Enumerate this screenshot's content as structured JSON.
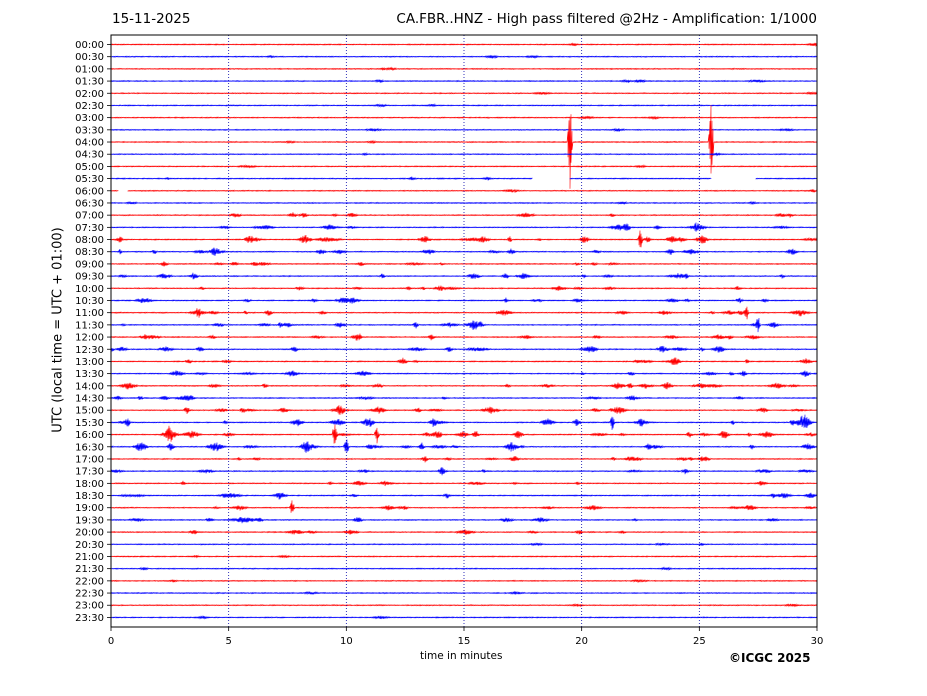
{
  "header": {
    "date": "15-11-2025",
    "title": "CA.FBR..HNZ - High pass filtered @2Hz - Amplification: 1/1000"
  },
  "footer": {
    "copyright": "©ICGC 2025"
  },
  "chart_data": {
    "type": "line",
    "title": "CA.FBR..HNZ - High pass filtered @2Hz - Amplification: 1/1000",
    "xlabel": "time in minutes",
    "ylabel": "UTC (local time = UTC + 01:00)",
    "xlim": [
      0,
      30
    ],
    "x_ticks": [
      0,
      5,
      10,
      15,
      20,
      25,
      30
    ],
    "x_grid": "dotted vertical lines every 5 minutes",
    "row_labels": [
      "00:00",
      "00:30",
      "01:00",
      "01:30",
      "02:00",
      "02:30",
      "03:00",
      "03:30",
      "04:00",
      "04:30",
      "05:00",
      "05:30",
      "06:00",
      "06:30",
      "07:00",
      "07:30",
      "08:00",
      "08:30",
      "09:00",
      "09:30",
      "10:00",
      "10:30",
      "11:00",
      "11:30",
      "12:00",
      "12:30",
      "13:00",
      "13:30",
      "14:00",
      "14:30",
      "15:00",
      "15:30",
      "16:00",
      "16:30",
      "17:00",
      "17:30",
      "18:00",
      "18:30",
      "19:00",
      "19:30",
      "20:00",
      "20:30",
      "21:00",
      "21:30",
      "22:00",
      "22:30",
      "23:00",
      "23:30"
    ],
    "row_colors": [
      "#ff0000",
      "#0000ff"
    ],
    "activity_levels": [
      0.1,
      0.15,
      0.1,
      0.2,
      0.1,
      0.1,
      0.1,
      0.15,
      0.1,
      0.1,
      0.1,
      0.15,
      0.1,
      0.15,
      0.4,
      0.6,
      0.9,
      0.7,
      0.5,
      0.6,
      0.5,
      0.6,
      0.6,
      0.7,
      0.6,
      0.7,
      0.5,
      0.6,
      0.7,
      0.5,
      0.7,
      0.8,
      1.0,
      1.0,
      0.6,
      0.5,
      0.4,
      0.5,
      0.5,
      0.5,
      0.4,
      0.15,
      0.1,
      0.1,
      0.1,
      0.1,
      0.1,
      0.1
    ],
    "large_events": [
      {
        "row": "04:00",
        "minute": 19.5,
        "amplitude": 8
      },
      {
        "row": "04:00",
        "minute": 25.5,
        "amplitude": 7
      },
      {
        "row": "05:30",
        "minute": 27.0,
        "amplitude": 1
      },
      {
        "row": "08:00",
        "minute": 22.5,
        "amplitude": 2
      },
      {
        "row": "11:00",
        "minute": 27.0,
        "amplitude": 1.5
      },
      {
        "row": "11:30",
        "minute": 27.5,
        "amplitude": 1.5
      },
      {
        "row": "15:30",
        "minute": 21.3,
        "amplitude": 1.5
      },
      {
        "row": "16:00",
        "minute": 9.5,
        "amplitude": 2
      },
      {
        "row": "16:00",
        "minute": 11.3,
        "amplitude": 1.5
      },
      {
        "row": "16:30",
        "minute": 10.0,
        "amplitude": 1.5
      },
      {
        "row": "19:00",
        "minute": 7.7,
        "amplitude": 1.5
      }
    ],
    "data_gaps": [
      {
        "row": "05:30",
        "from": 17.9,
        "to": 19.5
      },
      {
        "row": "05:30",
        "from": 25.5,
        "to": 27.4
      },
      {
        "row": "06:00",
        "from": 0.3,
        "to": 0.7
      }
    ]
  },
  "colors": {
    "red_trace": "#ff0000",
    "blue_trace": "#0000ff",
    "grid": "#0000aa"
  }
}
